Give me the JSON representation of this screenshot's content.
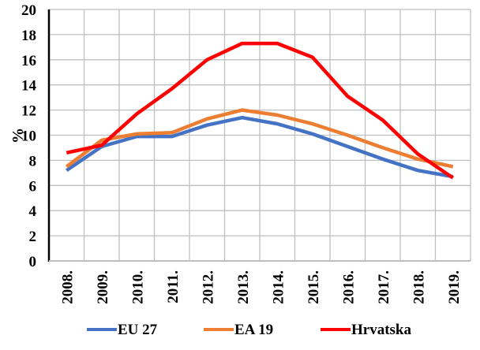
{
  "chart_data": {
    "type": "line",
    "title": "",
    "xlabel": "",
    "ylabel": "%",
    "ylim": [
      0,
      20
    ],
    "yticks": [
      "0",
      "2",
      "4",
      "6",
      "8",
      "10",
      "12",
      "14",
      "16",
      "18",
      "20"
    ],
    "grid": true,
    "legend_position": "bottom",
    "categories": [
      "2008.",
      "2009.",
      "2010.",
      "2011.",
      "2012.",
      "2013.",
      "2014.",
      "2015.",
      "2016.",
      "2017.",
      "2018.",
      "2019."
    ],
    "series": [
      {
        "name": "EU 27",
        "color": "#4472C4",
        "values": [
          7.2,
          9.1,
          9.9,
          9.9,
          10.8,
          11.4,
          10.9,
          10.1,
          9.1,
          8.1,
          7.2,
          6.7
        ]
      },
      {
        "name": "EA 19",
        "color": "#ED7D31",
        "values": [
          7.5,
          9.6,
          10.1,
          10.2,
          11.3,
          12.0,
          11.6,
          10.9,
          10.0,
          9.0,
          8.1,
          7.5
        ]
      },
      {
        "name": "Hrvatska",
        "color": "#FF0000",
        "values": [
          8.6,
          9.2,
          11.7,
          13.7,
          16.0,
          17.3,
          17.3,
          16.2,
          13.1,
          11.2,
          8.5,
          6.6
        ]
      }
    ]
  }
}
